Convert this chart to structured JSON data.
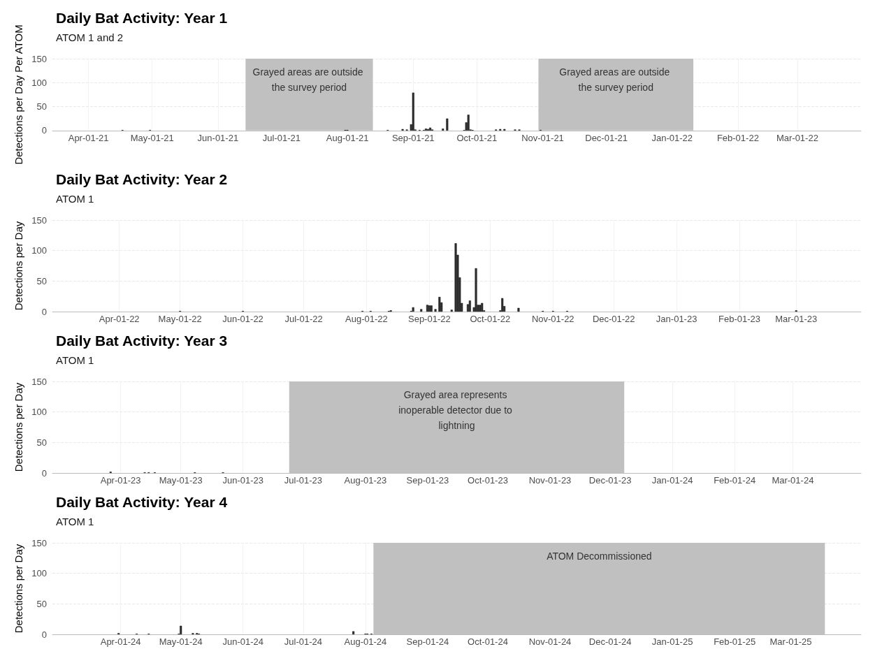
{
  "chart_data": [
    {
      "type": "bar",
      "title": "Daily Bat Activity: Year 1",
      "subtitle": "ATOM 1 and 2",
      "ylabel": "Detections per Day Per ATOM",
      "color": "#333333",
      "x": [
        "2021-04-17",
        "2021-04-30",
        "2021-07-31",
        "2021-08-01",
        "2021-08-20",
        "2021-08-27",
        "2021-08-29",
        "2021-08-31",
        "2021-09-01",
        "2021-09-02",
        "2021-09-04",
        "2021-09-06",
        "2021-09-07",
        "2021-09-08",
        "2021-09-09",
        "2021-09-10",
        "2021-09-15",
        "2021-09-17",
        "2021-09-25",
        "2021-09-26",
        "2021-09-27",
        "2021-09-28",
        "2021-09-29",
        "2021-10-10",
        "2021-10-12",
        "2021-10-14",
        "2021-10-19",
        "2021-10-21",
        "2021-10-31"
      ],
      "values": [
        1,
        1,
        1,
        1,
        1,
        3,
        2,
        13,
        79,
        2,
        1,
        1,
        4,
        3,
        6,
        2,
        4,
        25,
        1,
        17,
        33,
        2,
        1,
        2,
        3,
        3,
        2,
        2,
        1
      ],
      "xlim": [
        "2021-03-15",
        "2022-03-31"
      ],
      "xticks": [
        {
          "value": "2021-04-01",
          "label": "Apr-01-21"
        },
        {
          "value": "2021-05-01",
          "label": "May-01-21"
        },
        {
          "value": "2021-06-01",
          "label": "Jun-01-21"
        },
        {
          "value": "2021-07-01",
          "label": "Jul-01-21"
        },
        {
          "value": "2021-08-01",
          "label": "Aug-01-21"
        },
        {
          "value": "2021-09-01",
          "label": "Sep-01-21"
        },
        {
          "value": "2021-10-01",
          "label": "Oct-01-21"
        },
        {
          "value": "2021-11-01",
          "label": "Nov-01-21"
        },
        {
          "value": "2021-12-01",
          "label": "Dec-01-21"
        },
        {
          "value": "2022-01-01",
          "label": "Jan-01-22"
        },
        {
          "value": "2022-02-01",
          "label": "Feb-01-22"
        },
        {
          "value": "2022-03-01",
          "label": "Mar-01-22"
        }
      ],
      "ylim": [
        0,
        150
      ],
      "yticks": [
        0,
        50,
        100,
        150
      ],
      "grid": true,
      "bands": [
        {
          "axis": "x",
          "from": "2021-06-14",
          "to": "2021-08-13",
          "label": "Grayed areas are outside the survey period",
          "color": "#c0c0c0"
        },
        {
          "axis": "x",
          "from": "2021-10-30",
          "to": "2022-01-11",
          "label": "Grayed areas are outside the survey period",
          "color": "#c0c0c0"
        }
      ]
    },
    {
      "type": "bar",
      "title": "Daily Bat Activity: Year 2",
      "subtitle": "ATOM 1",
      "ylabel": "Detections per Day",
      "color": "#333333",
      "x": [
        "2022-05-01",
        "2022-06-01",
        "2022-07-30",
        "2022-08-03",
        "2022-08-12",
        "2022-08-13",
        "2022-08-23",
        "2022-08-24",
        "2022-08-28",
        "2022-08-31",
        "2022-09-01",
        "2022-09-02",
        "2022-09-04",
        "2022-09-06",
        "2022-09-07",
        "2022-09-12",
        "2022-09-14",
        "2022-09-15",
        "2022-09-16",
        "2022-09-17",
        "2022-09-20",
        "2022-09-21",
        "2022-09-23",
        "2022-09-24",
        "2022-09-25",
        "2022-09-26",
        "2022-09-27",
        "2022-09-28",
        "2022-10-06",
        "2022-10-07",
        "2022-10-08",
        "2022-10-15",
        "2022-10-27",
        "2022-11-01",
        "2022-11-08",
        "2023-03-01"
      ],
      "values": [
        1,
        1,
        1,
        1,
        1,
        2,
        1,
        7,
        4,
        11,
        10,
        10,
        4,
        24,
        15,
        3,
        112,
        93,
        56,
        14,
        12,
        18,
        7,
        71,
        11,
        11,
        14,
        2,
        2,
        22,
        9,
        6,
        1,
        1,
        1,
        2
      ],
      "xlim": [
        "2022-02-27",
        "2023-04-02"
      ],
      "xticks": [
        {
          "value": "2022-04-01",
          "label": "Apr-01-22"
        },
        {
          "value": "2022-05-01",
          "label": "May-01-22"
        },
        {
          "value": "2022-06-01",
          "label": "Jun-01-22"
        },
        {
          "value": "2022-07-01",
          "label": "Jul-01-22"
        },
        {
          "value": "2022-08-01",
          "label": "Aug-01-22"
        },
        {
          "value": "2022-09-01",
          "label": "Sep-01-22"
        },
        {
          "value": "2022-10-01",
          "label": "Oct-01-22"
        },
        {
          "value": "2022-11-01",
          "label": "Nov-01-22"
        },
        {
          "value": "2022-12-01",
          "label": "Dec-01-22"
        },
        {
          "value": "2023-01-01",
          "label": "Jan-01-23"
        },
        {
          "value": "2023-02-01",
          "label": "Feb-01-23"
        },
        {
          "value": "2023-03-01",
          "label": "Mar-01-23"
        }
      ],
      "ylim": [
        0,
        150
      ],
      "yticks": [
        0,
        50,
        100,
        150
      ],
      "grid": true
    },
    {
      "type": "bar",
      "title": "Daily Bat Activity: Year 3",
      "subtitle": "ATOM 1",
      "ylabel": "Detections per Day",
      "color": "#333333",
      "x": [
        "2023-03-27",
        "2023-04-13",
        "2023-04-15",
        "2023-04-18",
        "2023-05-08",
        "2023-05-22"
      ],
      "values": [
        2,
        1,
        1,
        1,
        1,
        1
      ],
      "xlim": [
        "2023-02-26",
        "2024-04-04"
      ],
      "xticks": [
        {
          "value": "2023-04-01",
          "label": "Apr-01-23"
        },
        {
          "value": "2023-05-01",
          "label": "May-01-23"
        },
        {
          "value": "2023-06-01",
          "label": "Jun-01-23"
        },
        {
          "value": "2023-07-01",
          "label": "Jul-01-23"
        },
        {
          "value": "2023-08-01",
          "label": "Aug-01-23"
        },
        {
          "value": "2023-09-01",
          "label": "Sep-01-23"
        },
        {
          "value": "2023-10-01",
          "label": "Oct-01-23"
        },
        {
          "value": "2023-11-01",
          "label": "Nov-01-23"
        },
        {
          "value": "2023-12-01",
          "label": "Dec-01-23"
        },
        {
          "value": "2024-01-01",
          "label": "Jan-01-24"
        },
        {
          "value": "2024-02-01",
          "label": "Feb-01-24"
        },
        {
          "value": "2024-03-01",
          "label": "Mar-01-24"
        }
      ],
      "ylim": [
        0,
        150
      ],
      "yticks": [
        0,
        50,
        100,
        150
      ],
      "grid": true,
      "bands": [
        {
          "axis": "x",
          "from": "2023-06-24",
          "to": "2023-12-08",
          "label": "Grayed area represents inoperable detector due to lightning",
          "color": "#c0c0c0"
        }
      ]
    },
    {
      "type": "bar",
      "title": "Daily Bat Activity: Year 4",
      "subtitle": "ATOM 1",
      "ylabel": "Detections per Day",
      "color": "#333333",
      "x": [
        "2024-03-31",
        "2024-04-09",
        "2024-04-15",
        "2024-04-30",
        "2024-05-01",
        "2024-05-07",
        "2024-05-09",
        "2024-05-10",
        "2024-07-26",
        "2024-08-01",
        "2024-08-02",
        "2024-08-04"
      ],
      "values": [
        2,
        1,
        1,
        1,
        14,
        2,
        2,
        1,
        5,
        1,
        1,
        1
      ],
      "xlim": [
        "2024-02-27",
        "2025-04-05"
      ],
      "xticks": [
        {
          "value": "2024-04-01",
          "label": "Apr-01-24"
        },
        {
          "value": "2024-05-01",
          "label": "May-01-24"
        },
        {
          "value": "2024-06-01",
          "label": "Jun-01-24"
        },
        {
          "value": "2024-07-01",
          "label": "Jul-01-24"
        },
        {
          "value": "2024-08-01",
          "label": "Aug-01-24"
        },
        {
          "value": "2024-09-01",
          "label": "Sep-01-24"
        },
        {
          "value": "2024-10-01",
          "label": "Oct-01-24"
        },
        {
          "value": "2024-11-01",
          "label": "Nov-01-24"
        },
        {
          "value": "2024-12-01",
          "label": "Dec-01-24"
        },
        {
          "value": "2025-01-01",
          "label": "Jan-01-25"
        },
        {
          "value": "2025-02-01",
          "label": "Feb-01-25"
        },
        {
          "value": "2025-03-01",
          "label": "Mar-01-25"
        }
      ],
      "ylim": [
        0,
        150
      ],
      "yticks": [
        0,
        50,
        100,
        150
      ],
      "grid": true,
      "bands": [
        {
          "axis": "x",
          "from": "2024-08-05",
          "to": "2025-03-18",
          "label": "ATOM Decommissioned",
          "color": "#c0c0c0"
        }
      ]
    }
  ]
}
